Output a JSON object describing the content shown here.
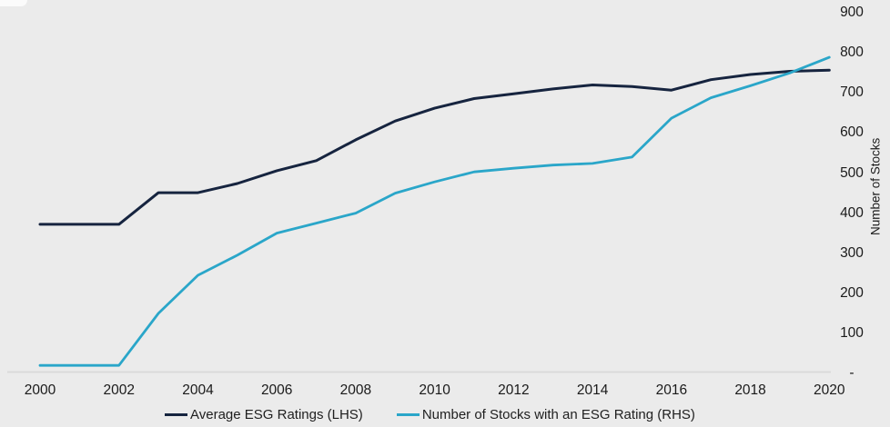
{
  "background_color": "#ebebeb",
  "text_color": "#1a1a1a",
  "axis_line_color": "#d9d9d9",
  "chart_data": {
    "type": "line",
    "title": "",
    "x": [
      2000,
      2001,
      2002,
      2003,
      2004,
      2005,
      2006,
      2007,
      2008,
      2009,
      2010,
      2011,
      2012,
      2013,
      2014,
      2015,
      2016,
      2017,
      2018,
      2019,
      2020
    ],
    "xlim": [
      2000,
      2020
    ],
    "ylim_right": [
      0,
      900
    ],
    "ylabel_right": "Number of Stocks",
    "left_axis_labels_visible": false,
    "grid": false,
    "legend_position": "bottom",
    "x_ticks": [
      {
        "label": "2000",
        "year": 2000
      },
      {
        "label": "2002",
        "year": 2002
      },
      {
        "label": "2004",
        "year": 2004
      },
      {
        "label": "2006",
        "year": 2006
      },
      {
        "label": "2008",
        "year": 2008
      },
      {
        "label": "2010",
        "year": 2010
      },
      {
        "label": "2012",
        "year": 2012
      },
      {
        "label": "2014",
        "year": 2014
      },
      {
        "label": "2016",
        "year": 2016
      },
      {
        "label": "2018",
        "year": 2018
      },
      {
        "label": "2020",
        "year": 2020
      }
    ],
    "right_ticks": [
      {
        "label": "900",
        "value": 900
      },
      {
        "label": "800",
        "value": 800
      },
      {
        "label": "700",
        "value": 700
      },
      {
        "label": "600",
        "value": 600
      },
      {
        "label": "500",
        "value": 500
      },
      {
        "label": "400",
        "value": 400
      },
      {
        "label": "300",
        "value": 300
      },
      {
        "label": "200",
        "value": 200
      },
      {
        "label": "100",
        "value": 100
      },
      {
        "label": "-",
        "value": 0
      }
    ],
    "series": [
      {
        "name": "Average ESG Ratings (LHS)",
        "color": "#16243f",
        "axis": "left (unlabeled)",
        "stroke_width": 3,
        "values": [
          372,
          372,
          372,
          451,
          451,
          474,
          506,
          531,
          583,
          630,
          662,
          686,
          698,
          710,
          720,
          716,
          707,
          733,
          746,
          754,
          757
        ]
      },
      {
        "name": "Number of Stocks with an ESG Rating (RHS)",
        "color": "#2aa6c9",
        "axis": "right",
        "stroke_width": 2.8,
        "values": [
          20,
          20,
          20,
          150,
          245,
          295,
          350,
          375,
          400,
          450,
          478,
          503,
          512,
          520,
          524,
          540,
          637,
          688,
          718,
          750,
          789
        ]
      }
    ]
  },
  "legend": {
    "items": [
      {
        "label": "Average ESG Ratings (LHS)",
        "color": "#16243f"
      },
      {
        "label": "Number of Stocks with an ESG Rating (RHS)",
        "color": "#2aa6c9"
      }
    ]
  }
}
